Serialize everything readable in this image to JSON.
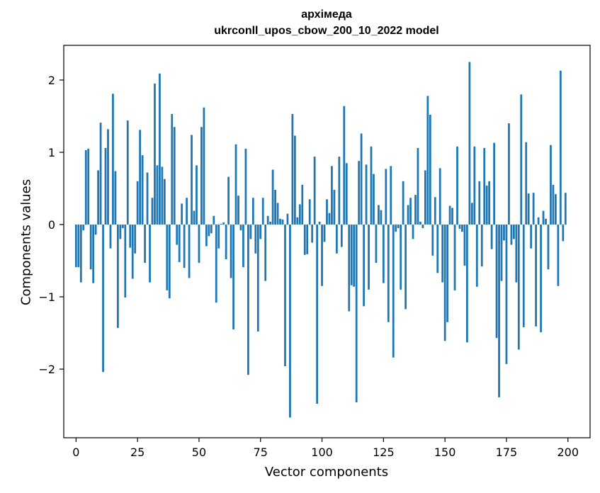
{
  "chart_data": {
    "type": "bar",
    "title": "архімеда",
    "subtitle": "ukrconll_upos_cbow_200_10_2022 model",
    "xlabel": "Vector components",
    "ylabel": "Components values",
    "xlim": [
      -5,
      209
    ],
    "ylim": [
      -2.95,
      2.48
    ],
    "xticks": [
      0,
      25,
      50,
      75,
      100,
      125,
      150,
      175,
      200
    ],
    "yticks": [
      -2,
      -1,
      0,
      1,
      2
    ],
    "ytick_labels": [
      "−2",
      "−1",
      "0",
      "1",
      "2"
    ],
    "grid": false,
    "bar_color": "#1f77b4",
    "series": [
      {
        "values": [
          -0.59,
          -0.59,
          -0.8,
          -0.08,
          1.03,
          1.05,
          -0.62,
          -0.81,
          -0.14,
          0.75,
          1.41,
          -2.04,
          1.06,
          1.32,
          -0.33,
          1.81,
          0.74,
          -1.43,
          -0.2,
          -0.05,
          -1.01,
          1.44,
          -0.32,
          -0.75,
          -0.4,
          0.6,
          1.31,
          0.96,
          -0.53,
          0.72,
          -0.8,
          0.37,
          1.95,
          0.82,
          2.09,
          0.8,
          0.63,
          -0.91,
          -1.02,
          1.53,
          1.35,
          -0.28,
          -0.52,
          0.29,
          -0.6,
          0.37,
          -0.74,
          1.24,
          0.19,
          0.82,
          -0.53,
          1.35,
          1.62,
          -0.3,
          -0.16,
          -0.12,
          0.12,
          -1.08,
          -0.33,
          0.01,
          0.03,
          -0.48,
          0.66,
          -0.74,
          -1.45,
          1.11,
          0.4,
          -0.08,
          -0.59,
          1.05,
          -2.08,
          -0.2,
          0.37,
          -0.4,
          -1.48,
          -0.2,
          0.37,
          -0.78,
          0.12,
          0.04,
          0.76,
          0.48,
          0.3,
          0.08,
          0.07,
          -1.96,
          0.15,
          -2.67,
          1.53,
          1.23,
          0.1,
          0.28,
          0.55,
          -0.42,
          -0.41,
          0.35,
          -0.25,
          0.94,
          -2.48,
          0.04,
          -0.85,
          -0.24,
          0.35,
          0.16,
          0.81,
          0.48,
          -0.4,
          0.94,
          -0.31,
          1.64,
          0.85,
          -1.2,
          -0.84,
          -0.86,
          -2.46,
          0.88,
          1.26,
          -1.13,
          0.83,
          -0.9,
          1.08,
          0.7,
          -0.53,
          0.27,
          0.2,
          -0.81,
          0.77,
          -1.35,
          0.81,
          -1.84,
          -0.1,
          -0.05,
          -0.9,
          0.6,
          -1.17,
          0.27,
          0.37,
          -0.2,
          0.41,
          1.06,
          0.04,
          -0.05,
          0.75,
          1.78,
          1.52,
          -0.43,
          0.38,
          -0.67,
          0.78,
          -0.8,
          -1.61,
          -1.35,
          0.26,
          0.23,
          -0.91,
          1.08,
          -0.06,
          -0.1,
          -0.57,
          -1.63,
          2.25,
          0.3,
          1.08,
          -0.86,
          0.6,
          -0.58,
          1.06,
          0.54,
          0.6,
          -0.34,
          1.13,
          -1.57,
          -2.39,
          -0.78,
          -0.22,
          -1.93,
          1.4,
          -0.28,
          -0.2,
          -0.8,
          -1.73,
          1.8,
          -1.42,
          1.14,
          0.43,
          -0.33,
          0.44,
          -1.41,
          0.1,
          -1.49,
          0.19,
          0.08,
          -0.62,
          1.1,
          0.55,
          0.42,
          -0.85,
          2.13,
          -0.23,
          0.44
        ]
      }
    ]
  }
}
